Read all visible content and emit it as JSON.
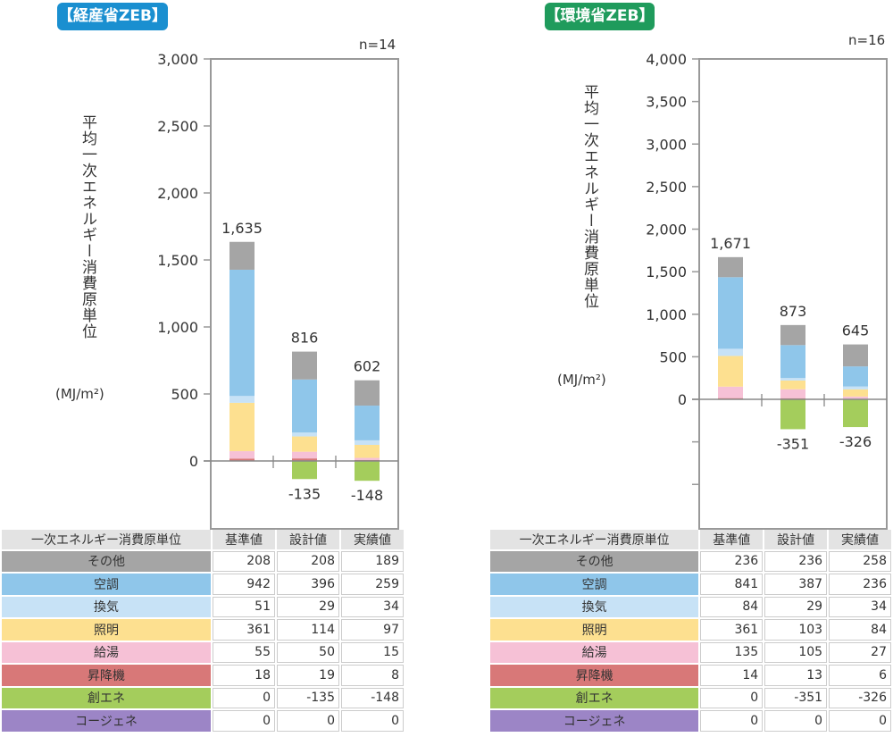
{
  "categories_label": "一次エネルギー消費原単位",
  "column_headers": [
    "基準値",
    "設計値",
    "実績値"
  ],
  "ylabel": "平均一次エネルギー消費原単位",
  "unit": "(MJ/m²)",
  "components": [
    {
      "name": "その他",
      "color": "#a5a5a5"
    },
    {
      "name": "空調",
      "color": "#8fc6ea"
    },
    {
      "name": "換気",
      "color": "#c7e2f6"
    },
    {
      "name": "照明",
      "color": "#fde090"
    },
    {
      "name": "給湯",
      "color": "#f6c1d6"
    },
    {
      "name": "昇降機",
      "color": "#d87878"
    },
    {
      "name": "創エネ",
      "color": "#a4cd5c"
    },
    {
      "name": "コージェネ",
      "color": "#9c85c6"
    }
  ],
  "chart_data": [
    {
      "type": "bar",
      "stacked": true,
      "title": "【経産省ZEB】",
      "badge_color": "#1a8fd0",
      "n": "n=14",
      "categories": [
        "基準値",
        "設計値",
        "実績値"
      ],
      "ylim": [
        -500,
        3000
      ],
      "yticks": [
        0,
        500,
        1000,
        1500,
        2000,
        2500,
        3000
      ],
      "ytick_labels": [
        "0",
        "500",
        "1,000",
        "1,500",
        "2,000",
        "2,500",
        "3,000"
      ],
      "totals": [
        "1,635",
        "816",
        "602"
      ],
      "negative_labels": [
        "",
        "-135",
        "-148"
      ],
      "series": [
        {
          "name": "その他",
          "values": [
            208,
            208,
            189
          ]
        },
        {
          "name": "空調",
          "values": [
            942,
            396,
            259
          ]
        },
        {
          "name": "換気",
          "values": [
            51,
            29,
            34
          ]
        },
        {
          "name": "照明",
          "values": [
            361,
            114,
            97
          ]
        },
        {
          "name": "給湯",
          "values": [
            55,
            50,
            15
          ]
        },
        {
          "name": "昇降機",
          "values": [
            18,
            19,
            8
          ]
        },
        {
          "name": "創エネ",
          "values": [
            0,
            -135,
            -148
          ]
        },
        {
          "name": "コージェネ",
          "values": [
            0,
            0,
            0
          ]
        }
      ]
    },
    {
      "type": "bar",
      "stacked": true,
      "title": "【環境省ZEB】",
      "badge_color": "#1f9b5c",
      "n": "n=16",
      "categories": [
        "基準値",
        "設計値",
        "実績値"
      ],
      "ylim": [
        -1500,
        4000
      ],
      "yticks": [
        -1000,
        -500,
        0,
        500,
        1000,
        1500,
        2000,
        2500,
        3000,
        3500,
        4000
      ],
      "ytick_labels": [
        "",
        "",
        "0",
        "500",
        "1,000",
        "1,500",
        "2,000",
        "2,500",
        "3,000",
        "3,500",
        "4,000"
      ],
      "totals": [
        "1,671",
        "873",
        "645"
      ],
      "negative_labels": [
        "",
        "-351",
        "-326"
      ],
      "series": [
        {
          "name": "その他",
          "values": [
            236,
            236,
            258
          ]
        },
        {
          "name": "空調",
          "values": [
            841,
            387,
            236
          ]
        },
        {
          "name": "換気",
          "values": [
            84,
            29,
            34
          ]
        },
        {
          "name": "照明",
          "values": [
            361,
            103,
            84
          ]
        },
        {
          "name": "給湯",
          "values": [
            135,
            105,
            27
          ]
        },
        {
          "name": "昇降機",
          "values": [
            14,
            13,
            6
          ]
        },
        {
          "name": "創エネ",
          "values": [
            0,
            -351,
            -326
          ]
        },
        {
          "name": "コージェネ",
          "values": [
            0,
            0,
            0
          ]
        }
      ]
    }
  ]
}
